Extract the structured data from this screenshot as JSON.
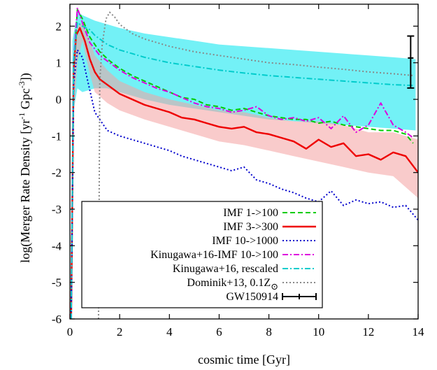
{
  "chart_data": {
    "type": "line",
    "xlabel": "cosmic time [Gyr]",
    "ylabel": "log(Merger Rate Density [yr",
    "ylabel_sup1": "-1",
    "ylabel_mid": " Gpc",
    "ylabel_sup2": "-3",
    "ylabel_end": "])",
    "xlim": [
      0,
      14
    ],
    "ylim": [
      -6,
      2.6
    ],
    "xticks": [
      0,
      2,
      4,
      6,
      8,
      10,
      12,
      14
    ],
    "yticks": [
      -6,
      -5,
      -4,
      -3,
      -2,
      -1,
      0,
      1,
      2
    ],
    "legend_position": "bottom-left",
    "series": [
      {
        "name": "IMF 1->100",
        "color": "#00cc00",
        "style": "dashed",
        "x": [
          0.05,
          0.15,
          0.3,
          0.5,
          0.8,
          1.2,
          1.6,
          2.0,
          2.5,
          3.0,
          3.5,
          4.0,
          4.5,
          5.0,
          5.5,
          6.0,
          6.5,
          7.0,
          7.5,
          8.0,
          8.5,
          9.0,
          9.5,
          10.0,
          10.5,
          11.0,
          11.5,
          12.0,
          12.5,
          13.0,
          13.5,
          13.8
        ],
        "y": [
          -6,
          0.9,
          2.45,
          2.2,
          1.7,
          1.3,
          1.05,
          0.85,
          0.65,
          0.5,
          0.35,
          0.2,
          0.05,
          0.0,
          -0.15,
          -0.2,
          -0.3,
          -0.25,
          -0.35,
          -0.45,
          -0.5,
          -0.55,
          -0.55,
          -0.65,
          -0.6,
          -0.7,
          -0.75,
          -0.8,
          -0.85,
          -0.85,
          -0.95,
          -1.2
        ]
      },
      {
        "name": "IMF 3->300",
        "color": "#ee0000",
        "style": "solid",
        "x": [
          0.05,
          0.15,
          0.25,
          0.4,
          0.6,
          0.8,
          1.0,
          1.2,
          1.6,
          2.0,
          2.5,
          3.0,
          3.5,
          4.0,
          4.5,
          5.0,
          5.5,
          6.0,
          6.5,
          7.0,
          7.5,
          8.0,
          8.5,
          9.0,
          9.5,
          10.0,
          10.5,
          11.0,
          11.5,
          12.0,
          12.5,
          13.0,
          13.5,
          14.0
        ],
        "y": [
          -6,
          0.8,
          1.75,
          1.95,
          1.6,
          1.1,
          0.75,
          0.55,
          0.35,
          0.15,
          0.0,
          -0.15,
          -0.25,
          -0.35,
          -0.5,
          -0.55,
          -0.65,
          -0.75,
          -0.8,
          -0.75,
          -0.9,
          -0.95,
          -1.05,
          -1.15,
          -1.35,
          -1.1,
          -1.3,
          -1.2,
          -1.55,
          -1.5,
          -1.65,
          -1.45,
          -1.55,
          -2.0
        ]
      },
      {
        "name": "IMF 10->1000",
        "color": "#0000cc",
        "style": "dotted",
        "x": [
          0.05,
          0.15,
          0.3,
          0.5,
          0.7,
          1.0,
          1.5,
          2.0,
          2.5,
          3.0,
          3.5,
          4.0,
          4.5,
          5.0,
          5.5,
          6.0,
          6.5,
          7.0,
          7.5,
          8.0,
          8.5,
          9.0,
          9.5,
          10.0,
          10.5,
          11.0,
          11.5,
          12.0,
          12.5,
          13.0,
          13.5,
          14.0
        ],
        "y": [
          -6,
          0.4,
          1.35,
          1.15,
          0.55,
          -0.35,
          -0.85,
          -1.0,
          -1.1,
          -1.2,
          -1.3,
          -1.4,
          -1.55,
          -1.65,
          -1.75,
          -1.85,
          -1.95,
          -1.85,
          -2.2,
          -2.3,
          -2.45,
          -2.55,
          -2.7,
          -2.8,
          -2.5,
          -2.9,
          -2.75,
          -2.85,
          -2.8,
          -2.95,
          -2.9,
          -3.3
        ]
      },
      {
        "name": "Kinugawa+16-IMF 10->100",
        "color": "#dd00dd",
        "style": "dash-dot",
        "x": [
          0.05,
          0.15,
          0.3,
          0.5,
          0.8,
          1.2,
          1.6,
          2.0,
          2.5,
          3.0,
          3.5,
          4.0,
          4.5,
          5.0,
          5.5,
          6.0,
          6.5,
          7.0,
          7.5,
          8.0,
          8.5,
          9.0,
          9.5,
          10.0,
          10.5,
          11.0,
          11.5,
          12.0,
          12.5,
          13.0,
          13.5,
          13.8
        ],
        "y": [
          -6,
          1.0,
          2.5,
          2.1,
          1.55,
          1.2,
          1.0,
          0.8,
          0.6,
          0.45,
          0.3,
          0.2,
          0.05,
          -0.1,
          -0.2,
          -0.25,
          -0.35,
          -0.3,
          -0.2,
          -0.45,
          -0.55,
          -0.5,
          -0.6,
          -0.5,
          -0.8,
          -0.45,
          -0.9,
          -0.7,
          -0.1,
          -0.7,
          -0.9,
          -1.05
        ]
      },
      {
        "name": "Kinugawa+16, rescaled",
        "color": "#00cccc",
        "style": "dash-dot",
        "x": [
          0.05,
          0.15,
          0.3,
          0.5,
          0.8,
          1.0,
          1.5,
          2.0,
          2.5,
          3.0,
          4.0,
          5.0,
          6.0,
          7.0,
          8.0,
          9.0,
          10.0,
          11.0,
          12.0,
          13.0,
          13.8
        ],
        "y": [
          -6,
          1.0,
          2.1,
          2.0,
          1.9,
          1.75,
          1.5,
          1.35,
          1.25,
          1.15,
          1.0,
          0.9,
          0.8,
          0.72,
          0.65,
          0.6,
          0.55,
          0.5,
          0.45,
          0.4,
          0.38
        ]
      },
      {
        "name": "Dominik+13, 0.1Z",
        "name_symbol": "⊙",
        "color": "#888888",
        "style": "dotted",
        "x": [
          1.15,
          1.2,
          1.3,
          1.45,
          1.6,
          1.8,
          2.0,
          2.5,
          3.0,
          4.0,
          5.0,
          6.0,
          7.0,
          8.0,
          9.0,
          10.0,
          11.0,
          12.0,
          13.0,
          13.8
        ],
        "y": [
          -6,
          0.5,
          1.5,
          2.2,
          2.38,
          2.25,
          2.05,
          1.8,
          1.65,
          1.45,
          1.3,
          1.2,
          1.1,
          1.0,
          0.95,
          0.88,
          0.82,
          0.75,
          0.7,
          0.65
        ]
      }
    ],
    "bands": [
      {
        "for": "Kinugawa+16, rescaled",
        "color": "#00e5ee",
        "x": [
          0.1,
          0.3,
          0.5,
          1.0,
          1.5,
          2.0,
          3.0,
          4.0,
          5.0,
          6.0,
          7.0,
          8.0,
          9.0,
          10.0,
          11.0,
          12.0,
          13.0,
          13.9
        ],
        "upper": [
          1.6,
          2.4,
          2.3,
          2.15,
          2.05,
          1.95,
          1.8,
          1.7,
          1.6,
          1.5,
          1.45,
          1.4,
          1.35,
          1.3,
          1.25,
          1.2,
          1.15,
          1.1
        ],
        "lower": [
          -0.5,
          0.3,
          0.2,
          0.3,
          0.3,
          0.2,
          0.0,
          -0.15,
          -0.25,
          -0.35,
          -0.45,
          -0.55,
          -0.6,
          -0.65,
          -0.7,
          -0.75,
          -0.8,
          -0.85
        ]
      },
      {
        "for": "IMF 3->300",
        "color": "#f4a0a0",
        "x": [
          0.15,
          0.3,
          0.5,
          0.8,
          1.0,
          1.5,
          2.0,
          3.0,
          4.0,
          5.0,
          6.0,
          7.0,
          8.0,
          9.0,
          10.0,
          11.0,
          12.0,
          13.0,
          14.0
        ],
        "upper": [
          1.2,
          2.0,
          2.1,
          1.6,
          1.2,
          0.8,
          0.5,
          0.2,
          0.0,
          -0.15,
          -0.3,
          -0.35,
          -0.5,
          -0.6,
          -0.6,
          -0.7,
          -0.9,
          -0.9,
          -1.1
        ],
        "lower": [
          -0.5,
          1.0,
          1.6,
          0.7,
          0.2,
          -0.1,
          -0.3,
          -0.55,
          -0.75,
          -0.95,
          -1.15,
          -1.25,
          -1.4,
          -1.55,
          -1.7,
          -1.85,
          -2.0,
          -2.1,
          -2.7
        ]
      }
    ],
    "observation": {
      "name": "GW150914",
      "x": 13.7,
      "y": 1.13,
      "y_low": 0.31,
      "y_high": 1.73,
      "color": "#000000"
    }
  }
}
